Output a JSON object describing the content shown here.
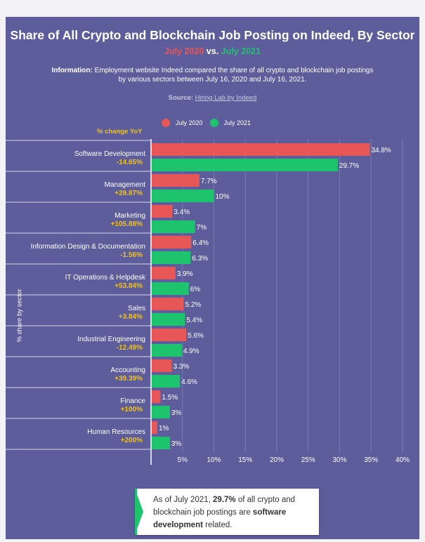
{
  "header": {
    "title": "Share of All Crypto and Blockchain Job Posting on Indeed, By Sector",
    "subtitle_a": "July 2020",
    "subtitle_vs": " vs. ",
    "subtitle_b": "July 2021",
    "info_label": "Information:",
    "info_text": " Employment website Indeed compared the share of all crypto and blockchain job postings by various sectors between July 16, 2020 and July 16, 2021.",
    "source_label": "Source:",
    "source_link": "Hiring Lab by Indeed"
  },
  "colors": {
    "background": "#5d5d9c",
    "july2020": "#e85757",
    "july2021": "#1ec36e",
    "yoy": "#f2c21b"
  },
  "legend": {
    "a": "July 2020",
    "b": "July 2021"
  },
  "yoy_header": "% change YoY",
  "yaxis_label": "% share by sector",
  "chart_data": {
    "type": "bar",
    "orientation": "horizontal",
    "categories": [
      "Software Development",
      "Management",
      "Marketing",
      "Information Design & Documentation",
      "IT Operations & Helpdesk",
      "Sales",
      "Industrial Engineering",
      "Accounting",
      "Finance",
      "Human Resources"
    ],
    "yoy_change": [
      "-14.65%",
      "+29.87%",
      "+105.88%",
      "-1.56%",
      "+53.84%",
      "+3.84%",
      "-12.49%",
      "+39.39%",
      "+100%",
      "+200%"
    ],
    "series": [
      {
        "name": "July 2020",
        "values": [
          34.8,
          7.7,
          3.4,
          6.4,
          3.9,
          5.2,
          5.6,
          3.3,
          1.5,
          1
        ],
        "labels": [
          "34.8%",
          "7.7%",
          "3.4%",
          "6.4%",
          "3.9%",
          "5.2%",
          "5.6%",
          "3.3%",
          "1.5%",
          "1%"
        ]
      },
      {
        "name": "July 2021",
        "values": [
          29.7,
          10,
          7,
          6.3,
          6,
          5.4,
          4.9,
          4.6,
          3,
          3
        ],
        "labels": [
          "29.7%",
          "10%",
          "7%",
          "6.3%",
          "6%",
          "5.4%",
          "4.9%",
          "4.6%",
          "3%",
          "3%"
        ]
      }
    ],
    "xticks": [
      "5%",
      "10%",
      "15%",
      "20%",
      "25%",
      "30%",
      "35%",
      "40%"
    ],
    "xlim": [
      0,
      40
    ],
    "grid": true,
    "ylabel": "% share by sector"
  },
  "callout": {
    "pre": "As of July 2021, ",
    "highlight": "29.7%",
    "mid": " of all crypto and blockchain job postings are ",
    "bold": "software development",
    "post": " related."
  }
}
